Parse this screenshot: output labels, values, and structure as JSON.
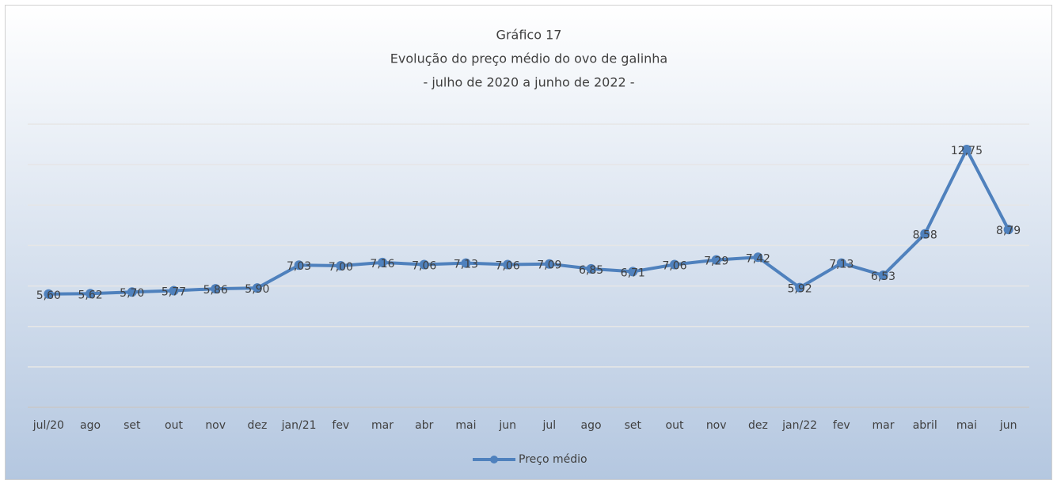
{
  "chart_data": {
    "type": "line",
    "title": [
      "Gráfico 17",
      "Evolução do preço médio do ovo de galinha",
      "- julho de 2020 a junho de 2022 -"
    ],
    "categories": [
      "jul/20",
      "ago",
      "set",
      "out",
      "nov",
      "dez",
      "jan/21",
      "fev",
      "mar",
      "abr",
      "mai",
      "jun",
      "jul",
      "ago",
      "set",
      "out",
      "nov",
      "dez",
      "jan/22",
      "fev",
      "mar",
      "abril",
      "mai",
      "jun"
    ],
    "series": [
      {
        "name": "Preço médio",
        "color": "#4f81bd",
        "values": [
          5.6,
          5.62,
          5.7,
          5.77,
          5.86,
          5.9,
          7.03,
          7.0,
          7.16,
          7.06,
          7.13,
          7.06,
          7.09,
          6.85,
          6.71,
          7.06,
          7.29,
          7.42,
          5.92,
          7.13,
          6.53,
          8.58,
          12.75,
          8.79
        ],
        "value_labels": [
          "5,60",
          "5,62",
          "5,70",
          "5,77",
          "5,86",
          "5,90",
          "7,03",
          "7,00",
          "7,16",
          "7,06",
          "7,13",
          "7,06",
          "7,09",
          "6,85",
          "6,71",
          "7,06",
          "7,29",
          "7,42",
          "5,92",
          "7,13",
          "6,53",
          "8,58",
          "12,75",
          "8,79"
        ]
      }
    ],
    "ylim": [
      0,
      14
    ],
    "yticks": [
      0,
      2,
      4,
      6,
      8,
      10,
      12,
      14
    ],
    "grid": true,
    "legend": "bottom"
  }
}
